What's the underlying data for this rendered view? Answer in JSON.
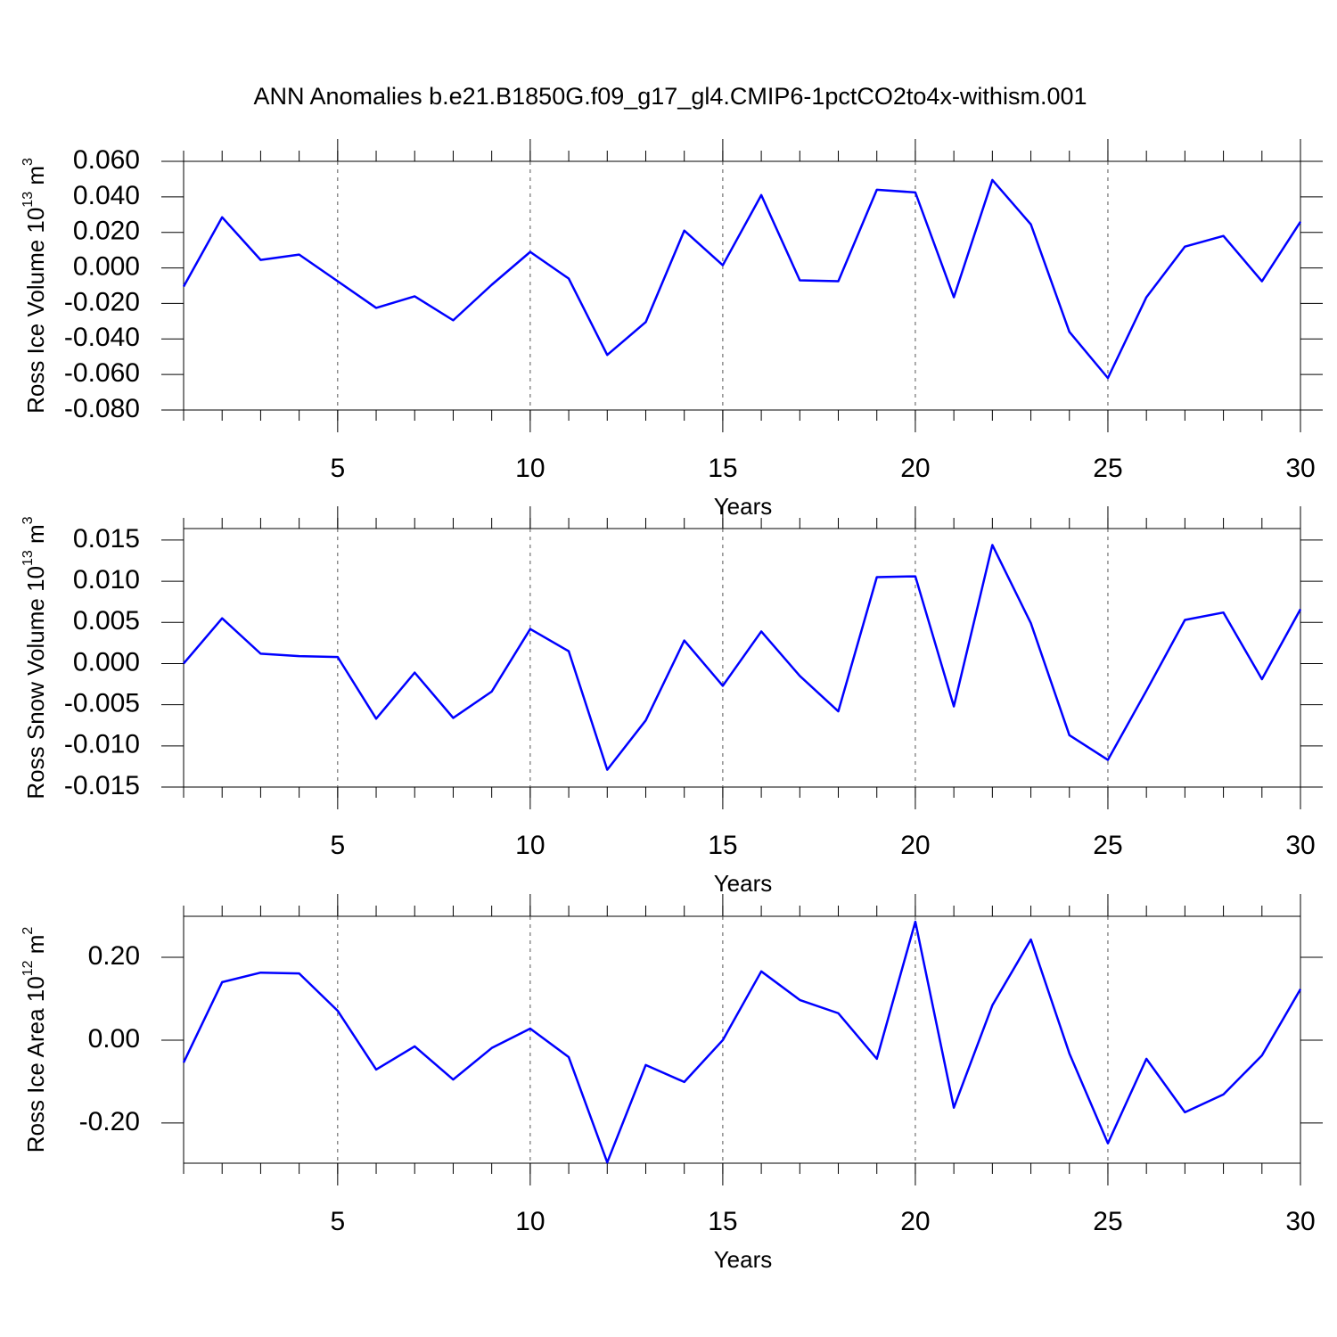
{
  "chart_data": [
    {
      "type": "line",
      "title": "ANN Anomalies b.e21.B1850G.f09_g17_gl4.CMIP6-1pctCO2to4x-withism.001",
      "ylabel": [
        "Ross Ice Volume 10",
        "13",
        " m",
        "3"
      ],
      "xlabel": "Years",
      "x": [
        1,
        2,
        3,
        4,
        5,
        6,
        7,
        8,
        9,
        10,
        11,
        12,
        13,
        14,
        15,
        16,
        17,
        18,
        19,
        20,
        21,
        22,
        23,
        24,
        25,
        26,
        27,
        28,
        29,
        30
      ],
      "series": [
        {
          "color": "#0000ff",
          "values": [
            -0.0105,
            0.0285,
            0.0045,
            0.0075,
            -0.0075,
            -0.0225,
            -0.016,
            -0.0295,
            -0.0095,
            0.009,
            -0.006,
            -0.049,
            -0.0305,
            0.021,
            0.0015,
            0.041,
            -0.007,
            -0.0075,
            0.044,
            0.0425,
            -0.0165,
            0.0495,
            0.0245,
            -0.036,
            -0.062,
            -0.0165,
            0.012,
            0.018,
            -0.0075,
            0.026
          ]
        }
      ],
      "xlim": [
        1,
        30
      ],
      "xticks": [
        5,
        10,
        15,
        20,
        25,
        30
      ],
      "ylim": [
        -0.08,
        0.06
      ],
      "yticks": [
        {
          "value": 0.06,
          "label": "0.060"
        },
        {
          "value": 0.04,
          "label": "0.040"
        },
        {
          "value": 0.02,
          "label": "0.020"
        },
        {
          "value": 0,
          "label": "0.000"
        },
        {
          "value": -0.02,
          "label": "-0.020"
        },
        {
          "value": -0.04,
          "label": "-0.040"
        },
        {
          "value": -0.06,
          "label": "-0.060"
        },
        {
          "value": -0.08,
          "label": "-0.080"
        }
      ],
      "grid": true
    },
    {
      "type": "line",
      "ylabel": [
        "Ross Snow Volume 10",
        "13",
        " m",
        "3"
      ],
      "xlabel": "Years",
      "x": [
        1,
        2,
        3,
        4,
        5,
        6,
        7,
        8,
        9,
        10,
        11,
        12,
        13,
        14,
        15,
        16,
        17,
        18,
        19,
        20,
        21,
        22,
        23,
        24,
        25,
        26,
        27,
        28,
        29,
        30
      ],
      "series": [
        {
          "color": "#0000ff",
          "values": [
            0.0,
            0.0055,
            0.0012,
            0.0009,
            0.0008,
            -0.0067,
            -0.0011,
            -0.0066,
            -0.0034,
            0.0042,
            0.0015,
            -0.0129,
            -0.0069,
            0.0028,
            -0.0027,
            0.0039,
            -0.0015,
            -0.0058,
            0.0105,
            0.0106,
            -0.0052,
            0.0144,
            0.0049,
            -0.0087,
            -0.0117,
            -0.0033,
            0.0053,
            0.0062,
            -0.0019,
            0.0066
          ]
        }
      ],
      "xlim": [
        1,
        30
      ],
      "xticks": [
        5,
        10,
        15,
        20,
        25,
        30
      ],
      "ylim": [
        -0.015,
        0.0164
      ],
      "yticks": [
        {
          "value": 0.015,
          "label": "0.015"
        },
        {
          "value": 0.01,
          "label": "0.010"
        },
        {
          "value": 0.005,
          "label": "0.005"
        },
        {
          "value": 0,
          "label": "0.000"
        },
        {
          "value": -0.005,
          "label": "-0.005"
        },
        {
          "value": -0.01,
          "label": "-0.010"
        },
        {
          "value": -0.015,
          "label": "-0.015"
        }
      ],
      "grid": true
    },
    {
      "type": "line",
      "ylabel": [
        "Ross Ice Area 10",
        "12",
        " m",
        "2"
      ],
      "xlabel": "Years",
      "x": [
        1,
        2,
        3,
        4,
        5,
        6,
        7,
        8,
        9,
        10,
        11,
        12,
        13,
        14,
        15,
        16,
        17,
        18,
        19,
        20,
        21,
        22,
        23,
        24,
        25,
        26,
        27,
        28,
        29,
        30
      ],
      "series": [
        {
          "color": "#0000ff",
          "values": [
            -0.054,
            0.14,
            0.163,
            0.161,
            0.071,
            -0.071,
            -0.015,
            -0.095,
            -0.019,
            0.028,
            -0.041,
            -0.295,
            -0.06,
            -0.101,
            0.0,
            0.166,
            0.097,
            0.065,
            -0.045,
            0.286,
            -0.163,
            0.084,
            0.243,
            -0.032,
            -0.249,
            -0.045,
            -0.174,
            -0.131,
            -0.037,
            0.123
          ]
        }
      ],
      "xlim": [
        1,
        30
      ],
      "xticks": [
        5,
        10,
        15,
        20,
        25,
        30
      ],
      "ylim": [
        -0.297,
        0.299
      ],
      "yticks": [
        {
          "value": 0.2,
          "label": "0.20"
        },
        {
          "value": 0,
          "label": "0.00"
        },
        {
          "value": -0.2,
          "label": "-0.20"
        }
      ],
      "grid": true
    }
  ]
}
